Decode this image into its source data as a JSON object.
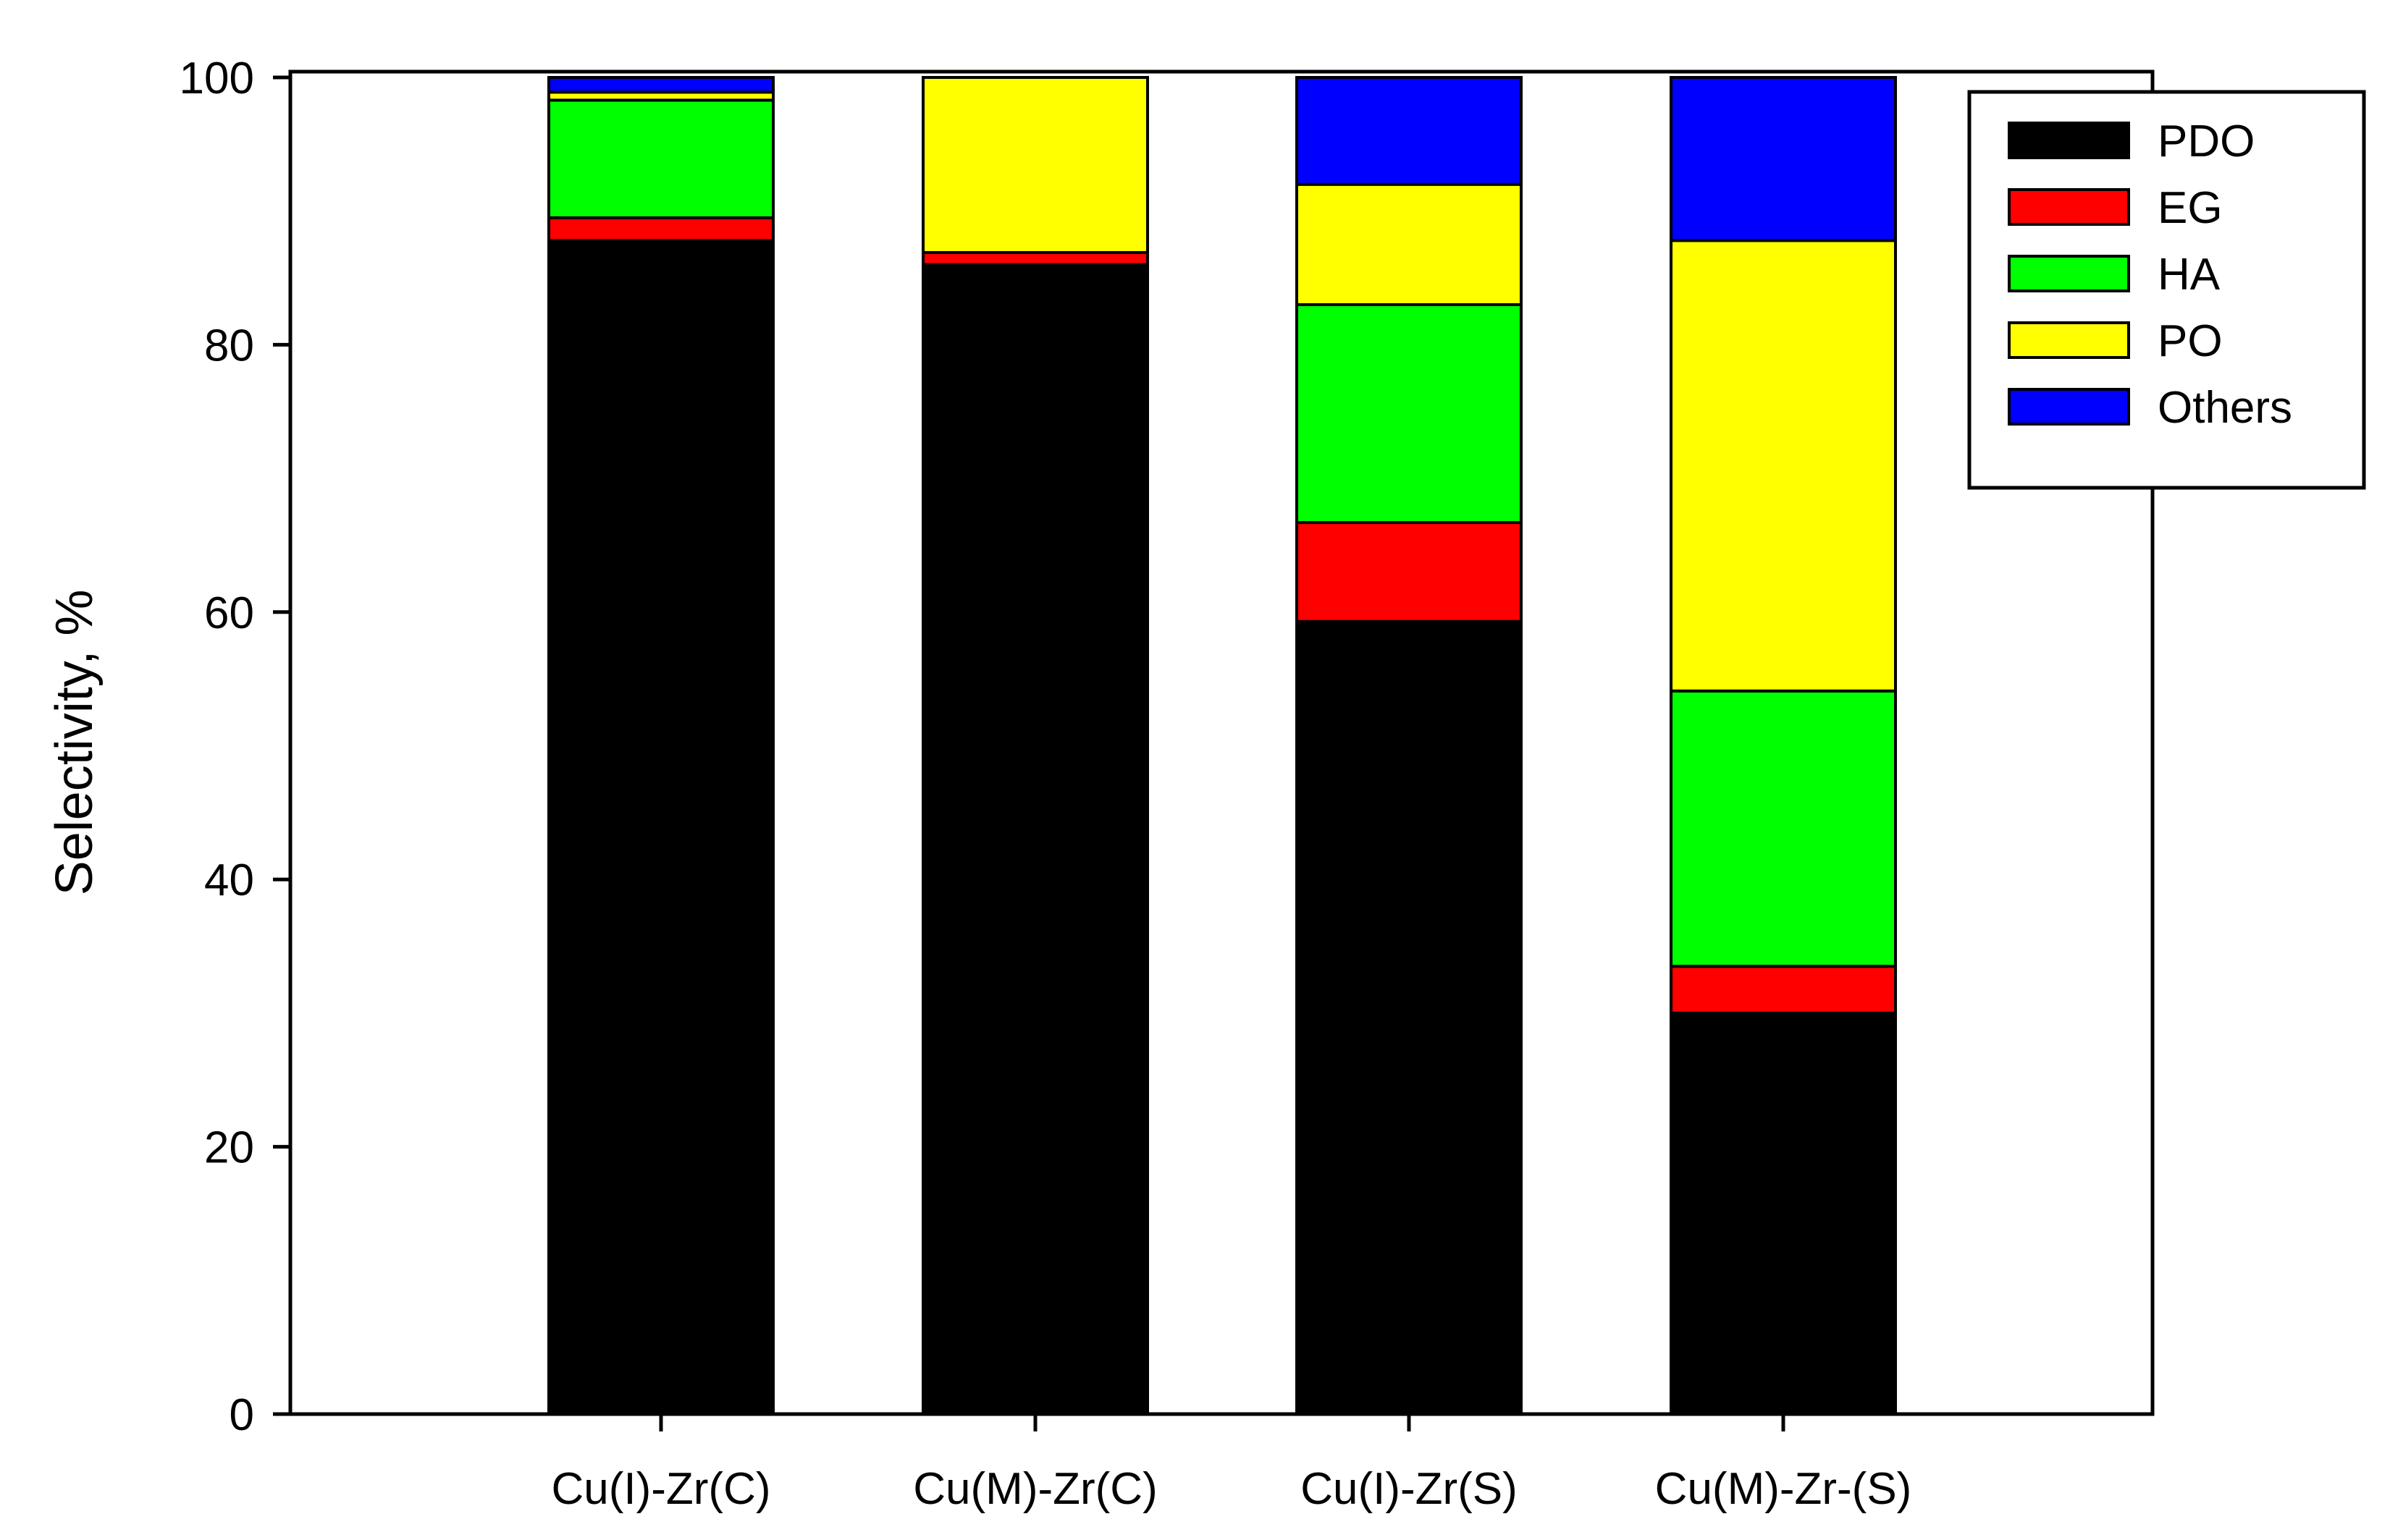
{
  "chart_data": {
    "type": "bar",
    "stacked": true,
    "title": "",
    "xlabel": "",
    "ylabel": "Selectivity, %",
    "ylim": [
      0,
      100
    ],
    "yticks": [
      "0",
      "20",
      "40",
      "60",
      "80",
      "100"
    ],
    "categories": [
      "Cu(I)-Zr(C)",
      "Cu(M)-Zr(C)",
      "Cu(I)-Zr(S)",
      "Cu(M)-Zr-(S)"
    ],
    "series": [
      {
        "name": "PDO",
        "color": "#000000",
        "values": [
          87.8,
          86.0,
          59.3,
          30.0
        ]
      },
      {
        "name": "EG",
        "color": "#ff0000",
        "values": [
          1.7,
          0.9,
          7.4,
          3.5
        ]
      },
      {
        "name": "HA",
        "color": "#00ff00",
        "values": [
          8.8,
          0.0,
          16.3,
          20.6
        ]
      },
      {
        "name": "PO",
        "color": "#ffff00",
        "values": [
          0.6,
          13.1,
          9.0,
          33.7
        ]
      },
      {
        "name": "Others",
        "color": "#0000ff",
        "values": [
          1.1,
          0.0,
          8.0,
          12.2
        ]
      }
    ],
    "legend": {
      "position": "top-right",
      "entries": [
        "PDO",
        "EG",
        "HA",
        "PO",
        "Others"
      ]
    },
    "grid": false
  }
}
